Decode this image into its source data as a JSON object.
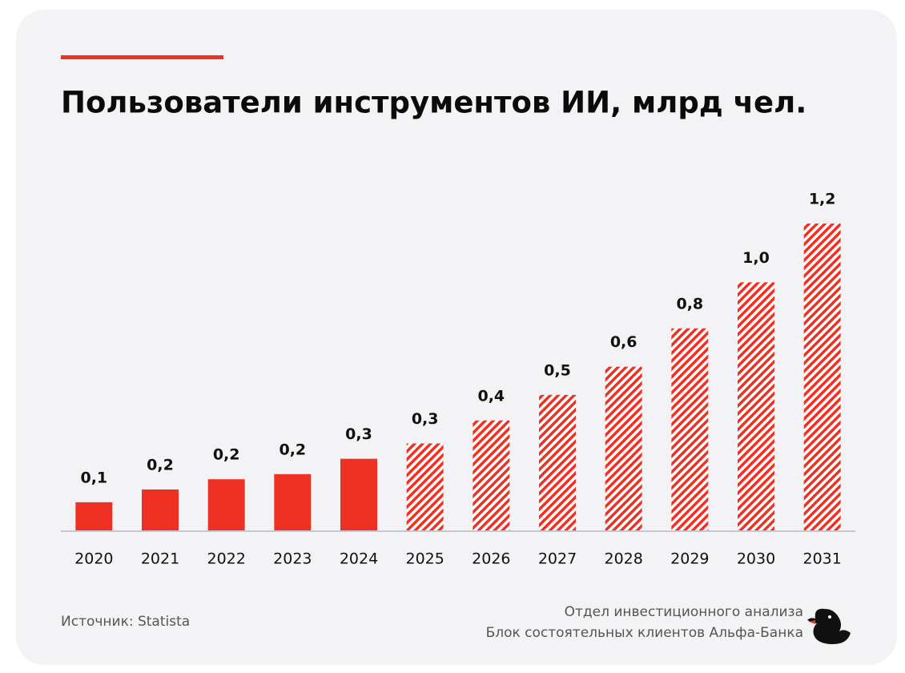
{
  "chart_data": {
    "type": "bar",
    "title": "Пользователи инструментов ИИ, млрд чел.",
    "categories": [
      "2020",
      "2021",
      "2022",
      "2023",
      "2024",
      "2025",
      "2026",
      "2027",
      "2028",
      "2029",
      "2030",
      "2031"
    ],
    "values": [
      0.11,
      0.16,
      0.2,
      0.22,
      0.28,
      0.34,
      0.43,
      0.53,
      0.64,
      0.79,
      0.97,
      1.2
    ],
    "value_labels": [
      "0,1",
      "0,2",
      "0,2",
      "0,2",
      "0,3",
      "0,3",
      "0,4",
      "0,5",
      "0,6",
      "0,8",
      "1,0",
      "1,2"
    ],
    "hatched": [
      false,
      false,
      false,
      false,
      false,
      true,
      true,
      true,
      true,
      true,
      true,
      true
    ],
    "color": "#ef3124",
    "ylim": [
      0,
      1.2
    ],
    "source": "Источник: Statista",
    "credit": [
      "Отдел инвестиционного анализа",
      "Блок состоятельных клиентов Альфа-Банка"
    ]
  }
}
